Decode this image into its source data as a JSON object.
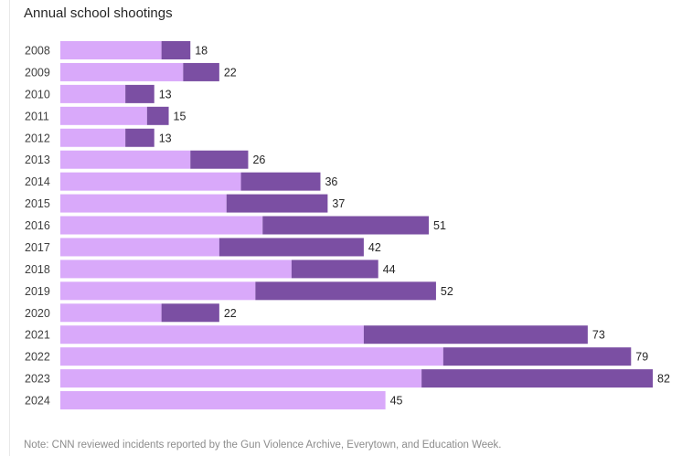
{
  "chart_data": {
    "type": "bar",
    "orientation": "horizontal",
    "stacked": true,
    "title": "Annual school shootings",
    "note": "Note: CNN reviewed incidents reported by the Gun Violence Archive, Everytown, and Education Week.",
    "categories": [
      "2008",
      "2009",
      "2010",
      "2011",
      "2012",
      "2013",
      "2014",
      "2015",
      "2016",
      "2017",
      "2018",
      "2019",
      "2020",
      "2021",
      "2022",
      "2023",
      "2024"
    ],
    "series": [
      {
        "color": "#d9a9fa",
        "values": [
          14,
          17,
          9,
          12,
          9,
          18,
          25,
          23,
          28,
          22,
          32,
          27,
          14,
          42,
          53,
          50,
          45
        ]
      },
      {
        "color": "#7b4fa3",
        "values": [
          4,
          5,
          4,
          3,
          4,
          8,
          11,
          14,
          23,
          20,
          12,
          25,
          8,
          31,
          26,
          32,
          0
        ]
      }
    ],
    "totals": [
      18,
      22,
      13,
      15,
      13,
      26,
      36,
      37,
      51,
      42,
      44,
      52,
      22,
      73,
      79,
      82,
      45
    ],
    "xlim": [
      0,
      82
    ],
    "grid": false,
    "legend": "none"
  }
}
